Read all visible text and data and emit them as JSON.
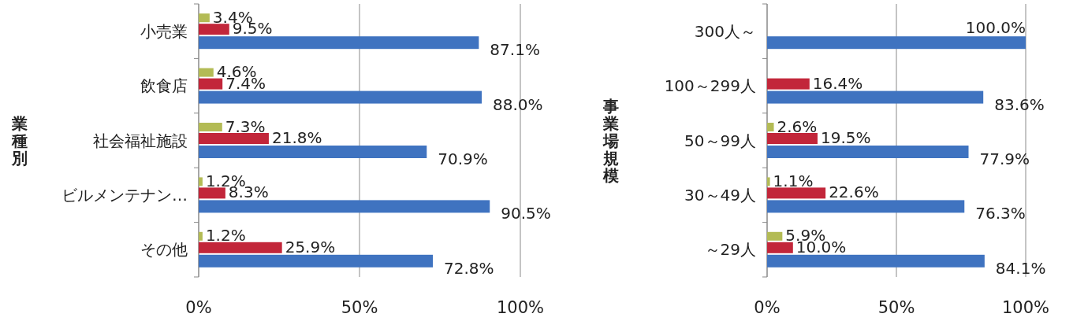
{
  "chart_data": [
    {
      "type": "bar",
      "orientation": "horizontal",
      "ylabel": "業種別",
      "categories": [
        "小売業",
        "飲食店",
        "社会福祉施設",
        "ビルメンテナン…",
        "その他"
      ],
      "xlim": [
        0,
        100
      ],
      "xticks": [
        {
          "value": 0,
          "label": "0%"
        },
        {
          "value": 50,
          "label": "50%"
        },
        {
          "value": 100,
          "label": "100%"
        }
      ],
      "grid": "x",
      "series": [
        {
          "color": "#b3bb55",
          "values": [
            3.4,
            4.6,
            7.3,
            1.2,
            1.2
          ],
          "value_labels": [
            "3.4%",
            "4.6%",
            "7.3%",
            "1.2%",
            "1.2%"
          ]
        },
        {
          "color": "#c2263a",
          "values": [
            9.5,
            7.4,
            21.8,
            8.3,
            25.9
          ],
          "value_labels": [
            "9.5%",
            "7.4%",
            "21.8%",
            "8.3%",
            "25.9%"
          ]
        },
        {
          "color": "#3f73c0",
          "values": [
            87.1,
            88.0,
            70.9,
            90.5,
            72.8
          ],
          "value_labels": [
            "87.1%",
            "88.0%",
            "70.9%",
            "90.5%",
            "72.8%"
          ]
        }
      ]
    },
    {
      "type": "bar",
      "orientation": "horizontal",
      "ylabel": "事業場規模",
      "categories": [
        "300人～",
        "100～299人",
        "50～99人",
        "30～49人",
        "～29人"
      ],
      "xlim": [
        0,
        100
      ],
      "xticks": [
        {
          "value": 0,
          "label": "0%"
        },
        {
          "value": 50,
          "label": "50%"
        },
        {
          "value": 100,
          "label": "100%"
        }
      ],
      "grid": "x",
      "series": [
        {
          "color": "#b3bb55",
          "values": [
            null,
            null,
            2.6,
            1.1,
            5.9
          ],
          "value_labels": [
            null,
            null,
            "2.6%",
            "1.1%",
            "5.9%"
          ]
        },
        {
          "color": "#c2263a",
          "values": [
            null,
            16.4,
            19.5,
            22.6,
            10.0
          ],
          "value_labels": [
            null,
            "16.4%",
            "19.5%",
            "22.6%",
            "10.0%"
          ]
        },
        {
          "color": "#3f73c0",
          "values": [
            100.0,
            83.6,
            77.9,
            76.3,
            84.1
          ],
          "value_labels": [
            "100.0%",
            "83.6%",
            "77.9%",
            "76.3%",
            "84.1%"
          ]
        }
      ]
    }
  ]
}
